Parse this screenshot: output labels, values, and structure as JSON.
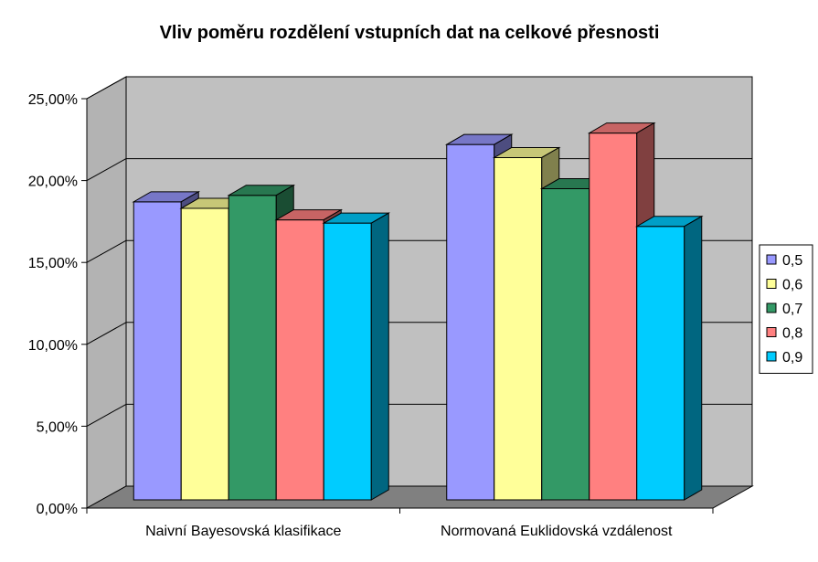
{
  "chart_data": {
    "type": "bar",
    "title": "Vliv poměru rozdělení vstupních dat na celkové přesnosti",
    "categories": [
      "Naivní Bayesovská klasifikace",
      "Normovaná Euklidovská vzdálenost"
    ],
    "series": [
      {
        "name": "0,5",
        "values": [
          18.2,
          21.7
        ],
        "color": "#9999ff"
      },
      {
        "name": "0,6",
        "values": [
          17.8,
          20.9
        ],
        "color": "#ffff99"
      },
      {
        "name": "0,7",
        "values": [
          18.6,
          19.0
        ],
        "color": "#339966"
      },
      {
        "name": "0,8",
        "values": [
          17.1,
          22.4
        ],
        "color": "#ff8080"
      },
      {
        "name": "0,9",
        "values": [
          16.9,
          16.7
        ],
        "color": "#00ccff"
      }
    ],
    "ylim": [
      0,
      25
    ],
    "yticks": [
      "0,00%",
      "5,00%",
      "10,00%",
      "15,00%",
      "20,00%",
      "25,00%"
    ],
    "grid": true,
    "legend": "right",
    "wall_color": "#c0c0c0",
    "floor_color": "#808080"
  }
}
